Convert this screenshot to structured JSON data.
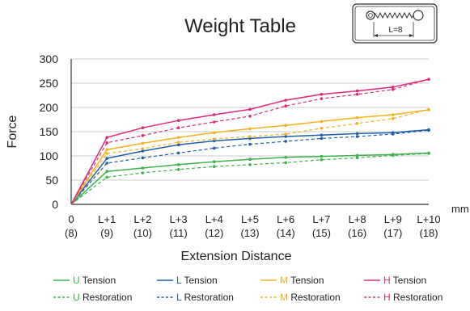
{
  "chart_data": {
    "type": "line",
    "title": "Weight Table",
    "inset_label": "L=8",
    "xlabel": "Extension Distance",
    "ylabel": "Force",
    "x_unit": "mm",
    "ylim": [
      0,
      300
    ],
    "yticks": [
      0,
      50,
      100,
      150,
      200,
      250,
      300
    ],
    "grid": true,
    "legend_position": "bottom",
    "categories": [
      "0",
      "L+1",
      "L+2",
      "L+3",
      "L+4",
      "L+5",
      "L+6",
      "L+7",
      "L+8",
      "L+9",
      "L+10"
    ],
    "categories_secondary": [
      "(8)",
      "(9)",
      "(10)",
      "(11)",
      "(12)",
      "(13)",
      "(14)",
      "(15)",
      "(16)",
      "(17)",
      "(18)"
    ],
    "series": [
      {
        "name": "U Tension",
        "letter": "U",
        "word": "Tension",
        "style": "solid",
        "color": "#3cb34a",
        "values": [
          0,
          68,
          75,
          82,
          88,
          93,
          97,
          99,
          101,
          103,
          106
        ]
      },
      {
        "name": "U Restoration",
        "letter": "U",
        "word": "Restoration",
        "style": "dashed",
        "color": "#3cb34a",
        "values": [
          0,
          56,
          65,
          72,
          78,
          82,
          86,
          92,
          96,
          101,
          105
        ]
      },
      {
        "name": "L Tension",
        "letter": "L",
        "word": "Tension",
        "style": "solid",
        "color": "#1f5fa8",
        "values": [
          0,
          95,
          110,
          123,
          131,
          136,
          140,
          143,
          146,
          148,
          154
        ]
      },
      {
        "name": "L Restoration",
        "letter": "L",
        "word": "Restoration",
        "style": "dashed",
        "color": "#1f5fa8",
        "values": [
          0,
          85,
          96,
          106,
          116,
          124,
          130,
          136,
          140,
          145,
          153
        ]
      },
      {
        "name": "M Tension",
        "letter": "M",
        "word": "Tension",
        "style": "solid",
        "color": "#f2b320",
        "values": [
          0,
          113,
          126,
          138,
          148,
          156,
          163,
          171,
          179,
          185,
          195
        ]
      },
      {
        "name": "M Restoration",
        "letter": "M",
        "word": "Restoration",
        "style": "dashed",
        "color": "#f2b320",
        "values": [
          0,
          105,
          115,
          128,
          135,
          140,
          145,
          157,
          167,
          177,
          196
        ]
      },
      {
        "name": "H Tension",
        "letter": "H",
        "word": "Tension",
        "style": "solid",
        "color": "#e0287a",
        "values": [
          0,
          138,
          158,
          173,
          185,
          196,
          215,
          227,
          234,
          242,
          258
        ]
      },
      {
        "name": "H Restoration",
        "letter": "H",
        "word": "Restoration",
        "style": "dashed",
        "color": "#e0287a",
        "values": [
          0,
          127,
          142,
          158,
          170,
          182,
          203,
          218,
          227,
          237,
          258
        ]
      }
    ]
  }
}
